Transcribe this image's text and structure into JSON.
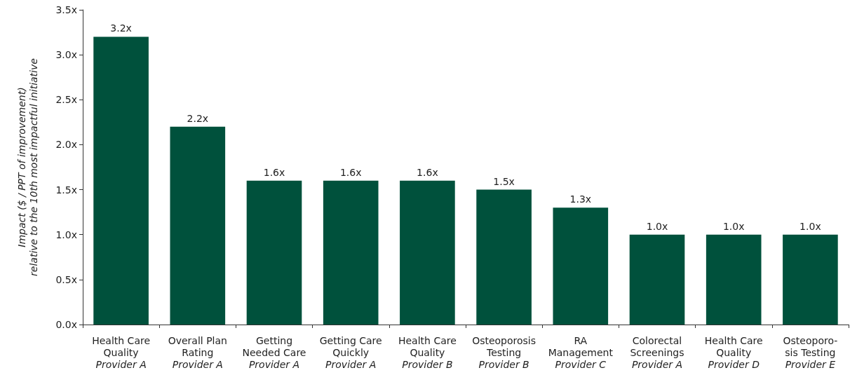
{
  "chart_data": {
    "type": "bar",
    "ylabel": "Impact ($ / PPT of improvement)\nrelative to the 10th most impactful initiative",
    "categories": [
      "Health Care\nQuality\nProvider A",
      "Overall Plan\nRating\nProvider A",
      "Getting\nNeeded Care\nProvider A",
      "Getting Care\nQuickly\nProvider A",
      "Health Care\nQuality\nProvider B",
      "Osteoporosis\nTesting\nProvider B",
      "RA\nManagement\nProvider C",
      "Colorectal\nScreenings\nProvider A",
      "Health Care\nQuality\nProvider D",
      "Osteoporo-\nsis Testing\nProvider E"
    ],
    "values": [
      3.2,
      2.2,
      1.6,
      1.6,
      1.6,
      1.5,
      1.3,
      1.0,
      1.0,
      1.0
    ],
    "value_labels": [
      "3.2x",
      "2.2x",
      "1.6x",
      "1.6x",
      "1.6x",
      "1.5x",
      "1.3x",
      "1.0x",
      "1.0x",
      "1.0x"
    ],
    "color": "#00513c",
    "ylim": [
      0,
      3.5
    ],
    "yticks": [
      {
        "value": 0,
        "label": "0.0x"
      },
      {
        "value": 0.5,
        "label": "0.5x"
      },
      {
        "value": 1,
        "label": "1.0x"
      },
      {
        "value": 1.5,
        "label": "1.5x"
      },
      {
        "value": 2,
        "label": "2.0x"
      },
      {
        "value": 2.5,
        "label": "2.5x"
      },
      {
        "value": 3,
        "label": "3.0x"
      },
      {
        "value": 3.5,
        "label": "3.5x"
      }
    ],
    "grid": false
  }
}
